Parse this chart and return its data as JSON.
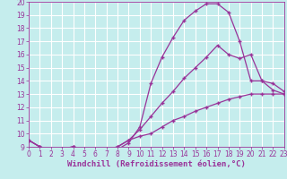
{
  "xlabel": "Windchill (Refroidissement éolien,°C)",
  "bg_color": "#c5eded",
  "grid_color": "#ffffff",
  "line_color": "#993399",
  "ylim": [
    9,
    20
  ],
  "xlim": [
    0,
    23
  ],
  "yticks": [
    9,
    10,
    11,
    12,
    13,
    14,
    15,
    16,
    17,
    18,
    19,
    20
  ],
  "xticks": [
    0,
    1,
    2,
    3,
    4,
    5,
    6,
    7,
    8,
    9,
    10,
    11,
    12,
    13,
    14,
    15,
    16,
    17,
    18,
    19,
    20,
    21,
    22,
    23
  ],
  "curve1_x": [
    0,
    1,
    2,
    3,
    4,
    5,
    6,
    7,
    8,
    9,
    10,
    11,
    12,
    13,
    14,
    15,
    16,
    17,
    18,
    19,
    20,
    21,
    22,
    23
  ],
  "curve1_y": [
    9.5,
    9.0,
    8.8,
    8.85,
    9.0,
    8.8,
    8.8,
    8.8,
    8.8,
    9.3,
    10.5,
    13.8,
    15.8,
    17.3,
    18.6,
    19.3,
    19.85,
    19.85,
    19.2,
    17.0,
    14.0,
    14.0,
    13.3,
    13.0
  ],
  "curve2_x": [
    0,
    1,
    2,
    3,
    4,
    5,
    6,
    7,
    8,
    9,
    10,
    11,
    12,
    13,
    14,
    15,
    16,
    17,
    18,
    19,
    20,
    21,
    22,
    23
  ],
  "curve2_y": [
    9.5,
    9.0,
    8.8,
    8.85,
    9.0,
    8.8,
    8.8,
    8.8,
    9.0,
    9.5,
    10.3,
    11.3,
    12.3,
    13.2,
    14.2,
    15.0,
    15.8,
    16.7,
    16.0,
    15.7,
    16.0,
    14.0,
    13.8,
    13.2
  ],
  "curve3_x": [
    0,
    1,
    2,
    3,
    4,
    5,
    6,
    7,
    8,
    9,
    10,
    11,
    12,
    13,
    14,
    15,
    16,
    17,
    18,
    19,
    20,
    21,
    22,
    23
  ],
  "curve3_y": [
    9.5,
    9.0,
    8.8,
    8.85,
    9.0,
    8.8,
    8.8,
    8.8,
    9.0,
    9.5,
    9.8,
    10.0,
    10.5,
    11.0,
    11.3,
    11.7,
    12.0,
    12.3,
    12.6,
    12.8,
    13.0,
    13.0,
    13.0,
    13.0
  ],
  "marker": "+",
  "markersize": 3,
  "linewidth": 0.9,
  "tick_labelsize": 5.5,
  "xlabel_fontsize": 6.5
}
